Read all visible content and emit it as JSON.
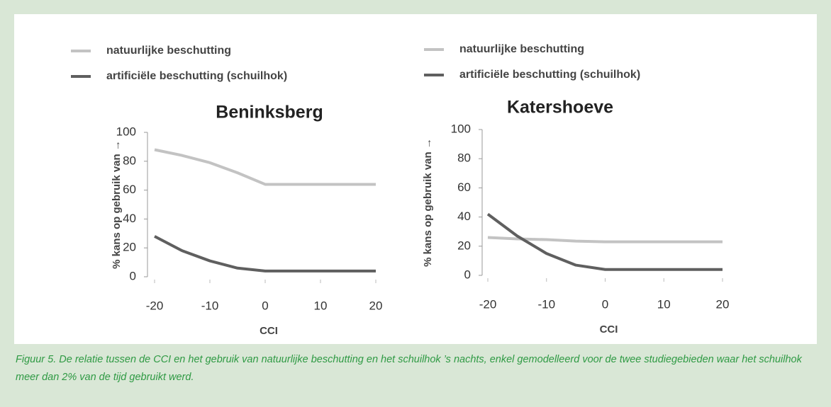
{
  "chart_data": [
    {
      "type": "line",
      "title": "Beninksberg",
      "x_label": "CCI",
      "y_label": "% kans op gebruik van →",
      "x": [
        -20,
        -15,
        -10,
        -5,
        0,
        5,
        10,
        15,
        20
      ],
      "series": [
        {
          "name": "natuurlijke beschutting",
          "color": "#c3c3c3",
          "values": [
            88,
            84,
            79,
            72,
            64,
            64,
            64,
            64,
            64
          ]
        },
        {
          "name": "artificiële beschutting (schuilhok)",
          "color": "#5f5f5f",
          "values": [
            28,
            18,
            11,
            6,
            4,
            4,
            4,
            4,
            4
          ]
        }
      ],
      "xlim": [
        -20,
        20
      ],
      "xticks": [
        -20,
        -10,
        0,
        10,
        20
      ],
      "ylim": [
        0,
        100
      ],
      "yticks": [
        0,
        20,
        40,
        60,
        80,
        100
      ],
      "legend": "top-left"
    },
    {
      "type": "line",
      "title": "Katershoeve",
      "x_label": "CCI",
      "y_label": "% kans op gebruik van →",
      "x": [
        -20,
        -15,
        -10,
        -5,
        0,
        5,
        10,
        15,
        20
      ],
      "series": [
        {
          "name": "natuurlijke beschutting",
          "color": "#c3c3c3",
          "values": [
            26,
            25,
            24.5,
            23.5,
            23,
            23,
            23,
            23,
            23
          ]
        },
        {
          "name": "artificiële beschutting (schuilhok)",
          "color": "#5f5f5f",
          "values": [
            42,
            27,
            15,
            7,
            4,
            4,
            4,
            4,
            4
          ]
        }
      ],
      "xlim": [
        -20,
        20
      ],
      "xticks": [
        -20,
        -10,
        0,
        10,
        20
      ],
      "ylim": [
        0,
        100
      ],
      "yticks": [
        0,
        20,
        40,
        60,
        80,
        100
      ],
      "legend": "top-left"
    }
  ],
  "caption": "Figuur 5. De relatie tussen de CCI en het gebruik van natuurlijke beschutting en het schuilhok ’s nachts, enkel gemodelleerd voor de twee studiegebieden waar het schuilhok meer dan 2% van de tijd gebruikt werd."
}
